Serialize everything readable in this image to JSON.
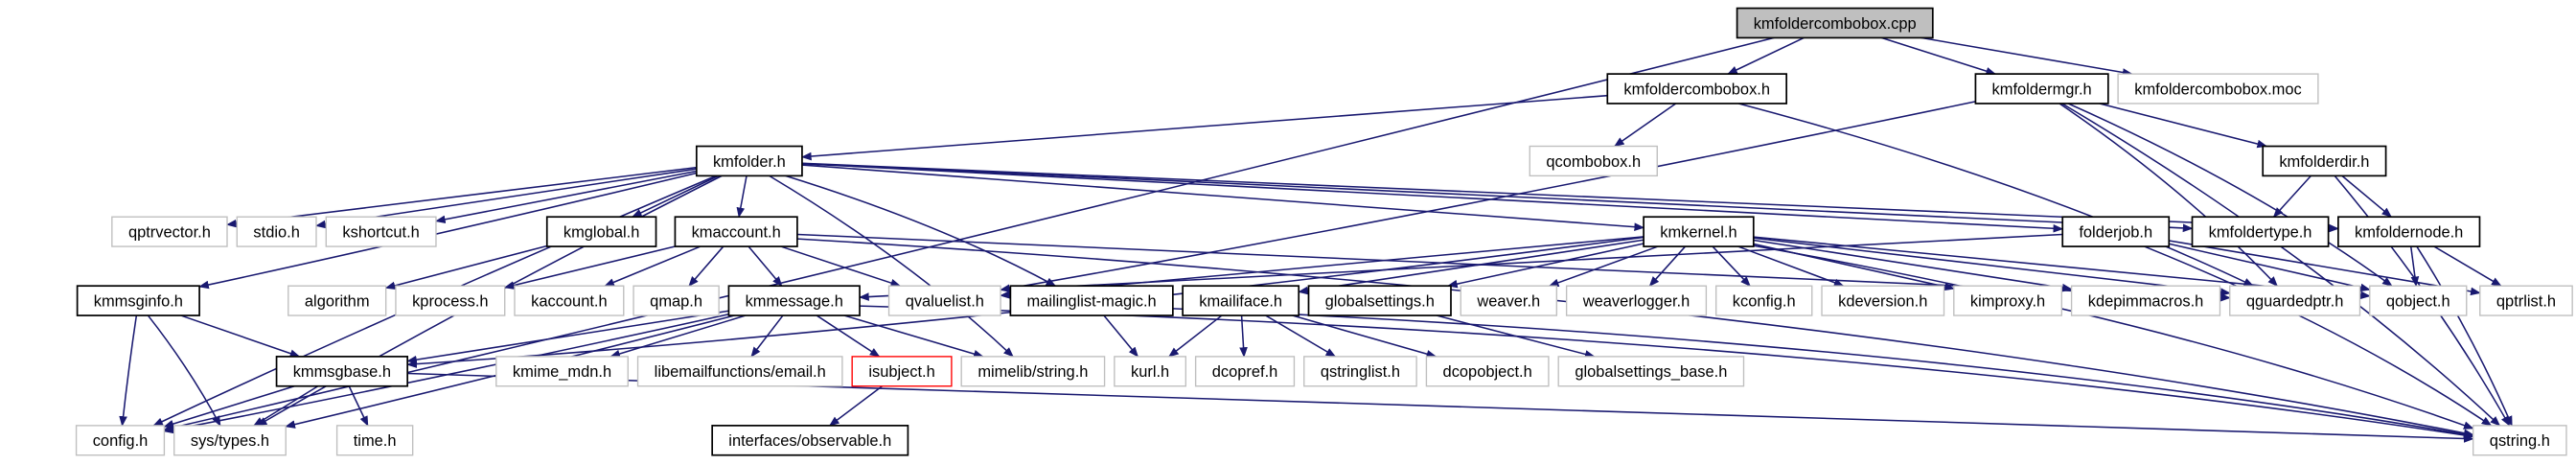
{
  "graph": {
    "colors": {
      "edge": "#191970",
      "documented_border": "#000000",
      "undocumented_border": "#bfbfbf",
      "root_fill": "#bfbfbf",
      "missing_border": "#ff0000"
    },
    "nodes": [
      {
        "id": "kmfoldercombobox.cpp",
        "kind": "root"
      },
      {
        "id": "kmfoldercombobox.h",
        "kind": "documented"
      },
      {
        "id": "kmfoldermgr.h",
        "kind": "documented"
      },
      {
        "id": "kmfoldercombobox.moc",
        "kind": "undocumented"
      },
      {
        "id": "kmfolder.h",
        "kind": "documented"
      },
      {
        "id": "qcombobox.h",
        "kind": "undocumented"
      },
      {
        "id": "kmfolderdir.h",
        "kind": "documented"
      },
      {
        "id": "qptrvector.h",
        "kind": "undocumented"
      },
      {
        "id": "stdio.h",
        "kind": "undocumented"
      },
      {
        "id": "kshortcut.h",
        "kind": "undocumented"
      },
      {
        "id": "kmglobal.h",
        "kind": "documented"
      },
      {
        "id": "kmaccount.h",
        "kind": "documented"
      },
      {
        "id": "kmkernel.h",
        "kind": "documented"
      },
      {
        "id": "folderjob.h",
        "kind": "documented"
      },
      {
        "id": "kmfoldertype.h",
        "kind": "documented"
      },
      {
        "id": "kmfoldernode.h",
        "kind": "documented"
      },
      {
        "id": "kmmsginfo.h",
        "kind": "documented"
      },
      {
        "id": "algorithm",
        "kind": "undocumented"
      },
      {
        "id": "kprocess.h",
        "kind": "undocumented"
      },
      {
        "id": "kaccount.h",
        "kind": "undocumented"
      },
      {
        "id": "qmap.h",
        "kind": "undocumented"
      },
      {
        "id": "kmmessage.h",
        "kind": "documented"
      },
      {
        "id": "qvaluelist.h",
        "kind": "undocumented"
      },
      {
        "id": "mailinglist-magic.h",
        "kind": "documented"
      },
      {
        "id": "kmailiface.h",
        "kind": "documented"
      },
      {
        "id": "globalsettings.h",
        "kind": "documented"
      },
      {
        "id": "weaver.h",
        "kind": "undocumented"
      },
      {
        "id": "weaverlogger.h",
        "kind": "undocumented"
      },
      {
        "id": "kconfig.h",
        "kind": "undocumented"
      },
      {
        "id": "kdeversion.h",
        "kind": "undocumented"
      },
      {
        "id": "kimproxy.h",
        "kind": "undocumented"
      },
      {
        "id": "kdepimmacros.h",
        "kind": "undocumented"
      },
      {
        "id": "qguardedptr.h",
        "kind": "undocumented"
      },
      {
        "id": "qobject.h",
        "kind": "undocumented"
      },
      {
        "id": "qptrlist.h",
        "kind": "undocumented"
      },
      {
        "id": "kmmsgbase.h",
        "kind": "documented"
      },
      {
        "id": "kmime_mdn.h",
        "kind": "undocumented"
      },
      {
        "id": "libemailfunctions/email.h",
        "kind": "undocumented"
      },
      {
        "id": "isubject.h",
        "kind": "missing"
      },
      {
        "id": "mimelib/string.h",
        "kind": "undocumented"
      },
      {
        "id": "kurl.h",
        "kind": "undocumented"
      },
      {
        "id": "dcopref.h",
        "kind": "undocumented"
      },
      {
        "id": "qstringlist.h",
        "kind": "undocumented"
      },
      {
        "id": "dcopobject.h",
        "kind": "undocumented"
      },
      {
        "id": "globalsettings_base.h",
        "kind": "undocumented"
      },
      {
        "id": "config.h",
        "kind": "undocumented"
      },
      {
        "id": "sys/types.h",
        "kind": "undocumented"
      },
      {
        "id": "time.h",
        "kind": "undocumented"
      },
      {
        "id": "interfaces/observable.h",
        "kind": "documented"
      },
      {
        "id": "qstring.h",
        "kind": "undocumented"
      }
    ],
    "edges": [
      [
        "kmfoldercombobox.cpp",
        "config.h"
      ],
      [
        "kmfoldercombobox.cpp",
        "kmfoldercombobox.h"
      ],
      [
        "kmfoldercombobox.cpp",
        "kmfoldermgr.h"
      ],
      [
        "kmfoldercombobox.cpp",
        "kmfoldercombobox.moc"
      ],
      [
        "kmfoldercombobox.h",
        "kmfolder.h"
      ],
      [
        "kmfoldercombobox.h",
        "qcombobox.h"
      ],
      [
        "kmfoldercombobox.h",
        "qguardedptr.h"
      ],
      [
        "kmfoldermgr.h",
        "qvaluelist.h"
      ],
      [
        "kmfoldermgr.h",
        "qguardedptr.h"
      ],
      [
        "kmfoldermgr.h",
        "qobject.h"
      ],
      [
        "kmfoldermgr.h",
        "kmfolderdir.h"
      ],
      [
        "kmfoldermgr.h",
        "qstring.h"
      ],
      [
        "kmfolderdir.h",
        "kmfoldertype.h"
      ],
      [
        "kmfolderdir.h",
        "kmfoldernode.h"
      ],
      [
        "kmfolderdir.h",
        "qstring.h"
      ],
      [
        "kmfoldernode.h",
        "qobject.h"
      ],
      [
        "kmfoldernode.h",
        "qptrlist.h"
      ],
      [
        "kmfoldernode.h",
        "qstring.h"
      ],
      [
        "folderjob.h",
        "kmmessage.h"
      ],
      [
        "folderjob.h",
        "qobject.h"
      ],
      [
        "folderjob.h",
        "qptrlist.h"
      ],
      [
        "folderjob.h",
        "qstring.h"
      ],
      [
        "kmfolder.h",
        "qptrvector.h"
      ],
      [
        "kmfolder.h",
        "stdio.h"
      ],
      [
        "kmfolder.h",
        "kshortcut.h"
      ],
      [
        "kmfolder.h",
        "kmglobal.h"
      ],
      [
        "kmfolder.h",
        "kmaccount.h"
      ],
      [
        "kmfolder.h",
        "kmmsginfo.h"
      ],
      [
        "kmfolder.h",
        "config.h"
      ],
      [
        "kmfolder.h",
        "sys/types.h"
      ],
      [
        "kmfolder.h",
        "mimelib/string.h"
      ],
      [
        "kmfolder.h",
        "mailinglist-magic.h"
      ],
      [
        "kmfolder.h",
        "kmkernel.h"
      ],
      [
        "kmfolder.h",
        "folderjob.h"
      ],
      [
        "kmfolder.h",
        "kmfoldertype.h"
      ],
      [
        "kmfolder.h",
        "kmfoldernode.h"
      ],
      [
        "kmglobal.h",
        "algorithm"
      ],
      [
        "kmaccount.h",
        "kprocess.h"
      ],
      [
        "kmaccount.h",
        "kaccount.h"
      ],
      [
        "kmaccount.h",
        "qmap.h"
      ],
      [
        "kmaccount.h",
        "kmmessage.h"
      ],
      [
        "kmaccount.h",
        "qvaluelist.h"
      ],
      [
        "kmaccount.h",
        "qstring.h"
      ],
      [
        "kmaccount.h",
        "qguardedptr.h"
      ],
      [
        "kmmsginfo.h",
        "kmmsgbase.h"
      ],
      [
        "kmmsginfo.h",
        "config.h"
      ],
      [
        "kmmsginfo.h",
        "sys/types.h"
      ],
      [
        "kmmessage.h",
        "kmmsgbase.h"
      ],
      [
        "kmmessage.h",
        "kmime_mdn.h"
      ],
      [
        "kmmessage.h",
        "libemailfunctions/email.h"
      ],
      [
        "kmmessage.h",
        "isubject.h"
      ],
      [
        "kmmessage.h",
        "mimelib/string.h"
      ],
      [
        "kmmessage.h",
        "config.h"
      ],
      [
        "kmmessage.h",
        "sys/types.h"
      ],
      [
        "kmmessage.h",
        "qstring.h"
      ],
      [
        "kmmsgbase.h",
        "config.h"
      ],
      [
        "kmmsgbase.h",
        "sys/types.h"
      ],
      [
        "kmmsgbase.h",
        "time.h"
      ],
      [
        "kmmsgbase.h",
        "qstring.h"
      ],
      [
        "isubject.h",
        "interfaces/observable.h"
      ],
      [
        "mailinglist-magic.h",
        "kurl.h"
      ],
      [
        "mailinglist-magic.h",
        "qstring.h"
      ],
      [
        "kmkernel.h",
        "kmmsgbase.h"
      ],
      [
        "kmkernel.h",
        "qvaluelist.h"
      ],
      [
        "kmkernel.h",
        "kmailiface.h"
      ],
      [
        "kmkernel.h",
        "globalsettings.h"
      ],
      [
        "kmkernel.h",
        "weaver.h"
      ],
      [
        "kmkernel.h",
        "weaverlogger.h"
      ],
      [
        "kmkernel.h",
        "kconfig.h"
      ],
      [
        "kmkernel.h",
        "kdeversion.h"
      ],
      [
        "kmkernel.h",
        "kimproxy.h"
      ],
      [
        "kmkernel.h",
        "kdepimmacros.h"
      ],
      [
        "kmkernel.h",
        "qguardedptr.h"
      ],
      [
        "kmkernel.h",
        "qobject.h"
      ],
      [
        "kmkernel.h",
        "qstring.h"
      ],
      [
        "kmailiface.h",
        "kurl.h"
      ],
      [
        "kmailiface.h",
        "dcopref.h"
      ],
      [
        "kmailiface.h",
        "qstringlist.h"
      ],
      [
        "kmailiface.h",
        "dcopobject.h"
      ],
      [
        "globalsettings.h",
        "globalsettings_base.h"
      ]
    ]
  }
}
